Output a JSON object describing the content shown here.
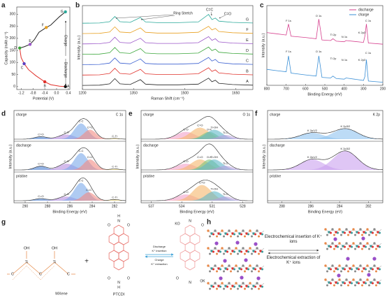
{
  "chart_data": [
    {
      "type": "line",
      "label": "a",
      "xlabel": "Potential (V)",
      "ylabel": "Capacity (mAh g⁻¹)",
      "xlim": [
        -1.35,
        0.45
      ],
      "xticks": [
        -1.2,
        -0.8,
        -0.4,
        {
          "value": 0,
          "label": "0.0"
        },
        0.4
      ],
      "ylim": [
        -12,
        330
      ],
      "yticks": [
        0,
        50,
        100,
        150,
        200,
        250,
        300
      ],
      "series": [
        {
          "name": "Discharge",
          "color": "#e0302a",
          "x": [
            0.3,
            0.1,
            -0.2,
            -0.4,
            -0.7,
            -0.95,
            -1.1,
            -1.2,
            -1.25
          ],
          "values": [
            0,
            2,
            8,
            20,
            45,
            70,
            95,
            120,
            160
          ]
        },
        {
          "name": "Charge",
          "color": "#222222",
          "x": [
            -1.25,
            -1.1,
            -0.9,
            -0.75,
            -0.6,
            -0.35,
            -0.2,
            0.1,
            0.3
          ],
          "values": [
            160,
            165,
            175,
            195,
            225,
            245,
            255,
            290,
            310
          ]
        }
      ],
      "points": [
        {
          "label": "A",
          "x": 0.3,
          "y": 0,
          "color": "#111111"
        },
        {
          "label": "B",
          "x": -0.4,
          "y": 20,
          "color": "#e0302a"
        },
        {
          "label": "C",
          "x": -1.1,
          "y": 95,
          "color": "#5b3fc0"
        },
        {
          "label": "D",
          "x": -1.25,
          "y": 160,
          "color": "#3aa63a"
        },
        {
          "label": "E",
          "x": -0.9,
          "y": 175,
          "color": "#9a55c8"
        },
        {
          "label": "F",
          "x": -0.35,
          "y": 245,
          "color": "#e8a020"
        },
        {
          "label": "G",
          "x": 0.3,
          "y": 310,
          "color": "#2aa99a"
        }
      ]
    },
    {
      "type": "spectrum",
      "label": "b",
      "xlabel": "Raman Shift (cm⁻¹)",
      "ylabel": "Intensity (a.u.)",
      "xlim": [
        1200,
        1700
      ],
      "xticks": [
        1200,
        1350,
        1500,
        1650
      ],
      "ylim": [
        -0.3,
        7.8
      ],
      "x": [
        1200,
        1250,
        1280,
        1295,
        1310,
        1340,
        1370,
        1385,
        1420,
        1480,
        1540,
        1570,
        1580,
        1590,
        1600,
        1640,
        1700
      ],
      "series": [
        {
          "name": "A",
          "color": "#222222",
          "values": [
            0.1,
            0.12,
            0.25,
            0.75,
            0.25,
            0.18,
            0.65,
            0.22,
            0.15,
            0.15,
            0.22,
            0.8,
            0.45,
            0.6,
            0.3,
            0.18,
            0.12
          ]
        },
        {
          "name": "B",
          "color": "#e0302a",
          "values": [
            1.1,
            1.12,
            1.25,
            1.75,
            1.25,
            1.18,
            1.65,
            1.22,
            1.15,
            1.15,
            1.22,
            1.8,
            1.45,
            1.6,
            1.3,
            1.18,
            1.12
          ]
        },
        {
          "name": "C",
          "color": "#3a5fd0",
          "values": [
            2.1,
            2.12,
            2.25,
            2.75,
            2.25,
            2.18,
            2.65,
            2.22,
            2.15,
            2.15,
            2.22,
            2.8,
            2.45,
            2.6,
            2.3,
            2.18,
            2.12
          ]
        },
        {
          "name": "D",
          "color": "#3aa63a",
          "values": [
            3.1,
            3.12,
            3.25,
            3.75,
            3.25,
            3.18,
            3.65,
            3.22,
            3.15,
            3.15,
            3.22,
            3.8,
            3.45,
            3.6,
            3.3,
            3.18,
            3.12
          ]
        },
        {
          "name": "E",
          "color": "#9a55c8",
          "values": [
            4.1,
            4.12,
            4.25,
            4.75,
            4.25,
            4.18,
            4.65,
            4.22,
            4.15,
            4.15,
            4.22,
            4.8,
            4.45,
            4.6,
            4.3,
            4.18,
            4.12
          ]
        },
        {
          "name": "F",
          "color": "#e8a020",
          "values": [
            5.1,
            5.12,
            5.25,
            5.75,
            5.25,
            5.18,
            5.65,
            5.22,
            5.15,
            5.15,
            5.22,
            5.8,
            5.45,
            5.6,
            5.3,
            5.18,
            5.12
          ]
        },
        {
          "name": "G",
          "color": "#2aa99a",
          "values": [
            6.1,
            6.12,
            6.25,
            6.75,
            6.25,
            6.18,
            6.65,
            6.22,
            6.15,
            6.15,
            6.22,
            6.95,
            6.45,
            6.6,
            6.3,
            6.18,
            6.12
          ]
        }
      ],
      "annotations": [
        "Ring Stretch",
        "C=C",
        "C=O"
      ]
    },
    {
      "type": "spectrum",
      "label": "c",
      "xlabel": "Binding Energy (eV)",
      "ylabel": "Intensity (a.u.)",
      "xlim": [
        800,
        200
      ],
      "xticks": [
        800,
        700,
        600,
        500,
        400,
        300,
        200
      ],
      "ylim": [
        0,
        6.5
      ],
      "legend": "upper right",
      "x": [
        800,
        750,
        700,
        688,
        675,
        600,
        545,
        531,
        515,
        470,
        458,
        440,
        400,
        390,
        300,
        293,
        285,
        275,
        200
      ],
      "series": [
        {
          "name": "discharge",
          "color": "#d6408e",
          "values": [
            4.3,
            4.2,
            4.1,
            5.0,
            4.0,
            3.9,
            3.8,
            5.4,
            3.7,
            3.65,
            3.8,
            3.6,
            3.55,
            3.65,
            3.5,
            4.0,
            5.0,
            3.45,
            3.35
          ]
        },
        {
          "name": "charge",
          "color": "#3a8fd6",
          "values": [
            1.3,
            1.2,
            1.1,
            2.4,
            1.0,
            0.85,
            0.75,
            2.4,
            0.65,
            0.6,
            0.75,
            0.55,
            0.5,
            0.6,
            0.4,
            0.7,
            2.1,
            0.35,
            0.25
          ]
        }
      ],
      "peak_labels_discharge": [
        "F 1s",
        "O 1s",
        "Ti 2p",
        "N 1s",
        "K 2p3",
        "C 1s"
      ],
      "peak_labels_charge": [
        "F 1s",
        "O 1s",
        "Ti 2p",
        "N 1s",
        "K 2p3",
        "C 1s"
      ]
    },
    {
      "type": "xps",
      "label": "d",
      "title": "C 1s",
      "xlabel": "Binding Energy (eV)",
      "ylabel": "Intensity (a.u.)",
      "xlim": [
        291,
        281
      ],
      "xticks": [
        290,
        288,
        286,
        284,
        282
      ],
      "subplots": [
        {
          "name": "charge",
          "components": [
            {
              "name": "C=O",
              "center": 288.6,
              "height": 0.12,
              "width": 0.55,
              "color": "#4a7fcf"
            },
            {
              "name": "C-O",
              "center": 286.3,
              "height": 0.22,
              "width": 0.7,
              "color": "#b78ee0"
            },
            {
              "name": "C-C",
              "center": 285.0,
              "height": 0.75,
              "width": 0.6,
              "color": "#7aa8ea"
            },
            {
              "name": "C=C",
              "center": 284.2,
              "height": 0.45,
              "width": 0.55,
              "color": "#f28b82"
            },
            {
              "name": "C-Ti",
              "center": 282.0,
              "height": 0.04,
              "width": 0.4,
              "color": "#e8cf6a"
            }
          ]
        },
        {
          "name": "discharge",
          "components": [
            {
              "name": "C=O",
              "center": 288.6,
              "height": 0.18,
              "width": 0.55,
              "color": "#4a7fcf"
            },
            {
              "name": "C-O",
              "center": 286.3,
              "height": 0.3,
              "width": 0.7,
              "color": "#b78ee0"
            },
            {
              "name": "C-C",
              "center": 285.0,
              "height": 0.8,
              "width": 0.6,
              "color": "#7aa8ea"
            },
            {
              "name": "C=C",
              "center": 284.2,
              "height": 0.5,
              "width": 0.55,
              "color": "#f28b82"
            },
            {
              "name": "C-Ti",
              "center": 282.0,
              "height": 0.05,
              "width": 0.4,
              "color": "#e8cf6a"
            }
          ]
        },
        {
          "name": "pristine",
          "components": [
            {
              "name": "C=O",
              "center": 288.6,
              "height": 0.1,
              "width": 0.55,
              "color": "#4a7fcf"
            },
            {
              "name": "C-O",
              "center": 286.3,
              "height": 0.2,
              "width": 0.7,
              "color": "#b78ee0"
            },
            {
              "name": "C-C",
              "center": 285.0,
              "height": 0.85,
              "width": 0.6,
              "color": "#7aa8ea"
            },
            {
              "name": "C=C",
              "center": 284.3,
              "height": 0.4,
              "width": 0.55,
              "color": "#f28b82"
            },
            {
              "name": "C-Ti",
              "center": 282.0,
              "height": 0.06,
              "width": 0.4,
              "color": "#e8cf6a"
            }
          ]
        }
      ]
    },
    {
      "type": "xps",
      "label": "e",
      "title": "O 1s",
      "xlabel": "Binding Energy (eV)",
      "ylabel": "Intensity (a.u.)",
      "xlim": [
        538,
        527
      ],
      "xticks": [
        537,
        534,
        531,
        528
      ],
      "subplots": [
        {
          "name": "charge",
          "components": [
            {
              "name": "C-O",
              "center": 533.6,
              "height": 0.35,
              "width": 0.9,
              "color": "#f2a0c8"
            },
            {
              "name": "C=O",
              "center": 532.2,
              "height": 0.55,
              "width": 0.9,
              "color": "#f5b56a"
            },
            {
              "name": "O-K",
              "center": 531.3,
              "height": 0.35,
              "width": 0.7,
              "color": "#7cc47c"
            },
            {
              "name": "Ti-OH",
              "center": 530.8,
              "height": 0.45,
              "width": 0.8,
              "color": "#5fb8c8"
            },
            {
              "name": "Ti-O",
              "center": 529.7,
              "height": 0.2,
              "width": 0.7,
              "color": "#b9a0e0"
            }
          ]
        },
        {
          "name": "discharge",
          "components": [
            {
              "name": "C-O",
              "center": 533.6,
              "height": 0.3,
              "width": 0.9,
              "color": "#f2a0c8"
            },
            {
              "name": "C=O",
              "center": 532.2,
              "height": 0.5,
              "width": 0.9,
              "color": "#f5b56a"
            },
            {
              "name": "O-K",
              "center": 531.3,
              "height": 0.5,
              "width": 0.7,
              "color": "#7cc47c"
            },
            {
              "name": "Ti-OH",
              "center": 530.8,
              "height": 0.5,
              "width": 0.8,
              "color": "#5fb8c8"
            },
            {
              "name": "Ti-O",
              "center": 529.7,
              "height": 0.2,
              "width": 0.7,
              "color": "#b9a0e0"
            }
          ]
        },
        {
          "name": "pristine",
          "components": [
            {
              "name": "C-O",
              "center": 533.6,
              "height": 0.3,
              "width": 0.9,
              "color": "#f2a0c8"
            },
            {
              "name": "C=O",
              "center": 532.0,
              "height": 0.75,
              "width": 0.9,
              "color": "#f5b56a"
            },
            {
              "name": "Ti-OH",
              "center": 530.8,
              "height": 0.45,
              "width": 0.8,
              "color": "#5fb8c8"
            },
            {
              "name": "Ti-O",
              "center": 529.7,
              "height": 0.2,
              "width": 0.7,
              "color": "#b9a0e0"
            }
          ]
        }
      ]
    },
    {
      "type": "xps",
      "label": "f",
      "title": "K 2p",
      "xlabel": "Binding Energy (eV)",
      "ylabel": "Intensity (a.u.)",
      "xlim": [
        289,
        281
      ],
      "xticks": [
        288,
        286,
        284,
        282
      ],
      "subplots": [
        {
          "name": "charge",
          "components": [
            {
              "name": "K 2p1/2",
              "center": 285.9,
              "height": 0.3,
              "width": 0.8,
              "color": "#8fc3f0"
            },
            {
              "name": "K 2p3/2",
              "center": 283.6,
              "height": 0.5,
              "width": 0.85,
              "color": "#8fc3f0"
            }
          ]
        },
        {
          "name": "discharge",
          "components": [
            {
              "name": "K 2p1/2",
              "center": 285.9,
              "height": 0.5,
              "width": 0.8,
              "color": "#c9a0ee"
            },
            {
              "name": "K 2p3/2",
              "center": 283.6,
              "height": 0.9,
              "width": 0.85,
              "color": "#c9a0ee"
            }
          ]
        },
        {
          "name": "pristine",
          "components": []
        }
      ]
    }
  ],
  "diagram_g": {
    "label": "g",
    "mxene": {
      "name": "MXene",
      "atoms": [
        "OH",
        "OH",
        "Ti",
        "Ti",
        "C",
        "C",
        "C"
      ]
    },
    "plus": "+",
    "ptcdi": {
      "name": "PTCDI",
      "atoms": [
        "O",
        "O",
        "N",
        "H",
        "O",
        "O",
        "N",
        "H"
      ]
    },
    "discharge": "Discharge",
    "insertion": "K⁺ insertion",
    "charge": "Charge",
    "extraction": "K⁺ extraction",
    "product_atoms": [
      "KO",
      "O",
      "N",
      "N",
      "O",
      "OK"
    ]
  },
  "diagram_h": {
    "label": "h",
    "insertion": "Electrochemical insertion of K⁺ ions",
    "extraction": "Electrochemical extraction of K⁺ ions"
  }
}
